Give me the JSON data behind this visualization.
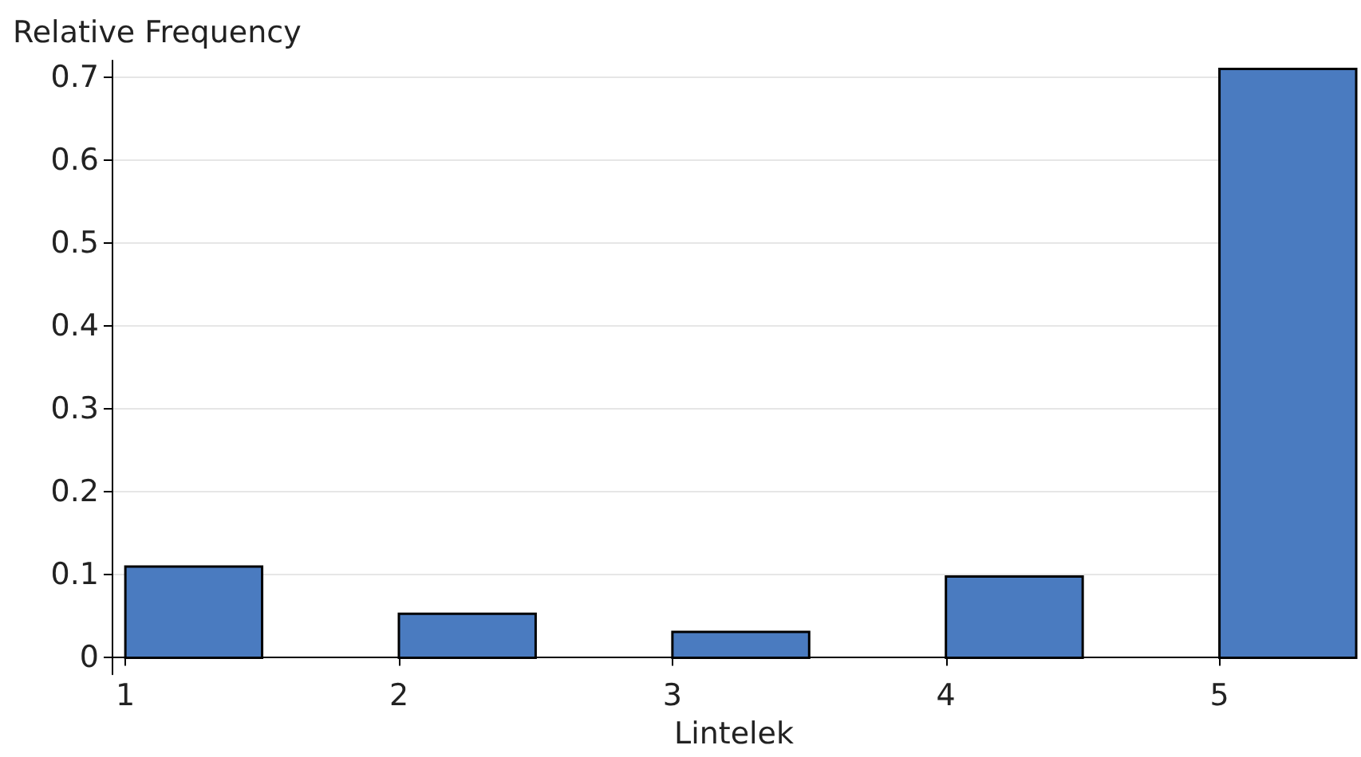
{
  "chart_data": {
    "type": "histogram",
    "xlabel": "Lintelek",
    "ylabel": "Relative Frequency",
    "bins": [
      1,
      1.5,
      2,
      2.5,
      3,
      3.5,
      4,
      4.5,
      5,
      5.5
    ],
    "values": [
      0.11,
      0,
      0.053,
      0,
      0.031,
      0,
      0.098,
      0,
      0.71
    ],
    "color": "#4a7bc0",
    "xlim": [
      0.95,
      5.5
    ],
    "xticks": [
      1,
      2,
      3,
      4,
      5
    ],
    "ylim": [
      -0.02,
      0.72
    ],
    "yticks": [
      0,
      0.1,
      0.2,
      0.3,
      0.4,
      0.5,
      0.6,
      0.7
    ],
    "grid": "y"
  }
}
